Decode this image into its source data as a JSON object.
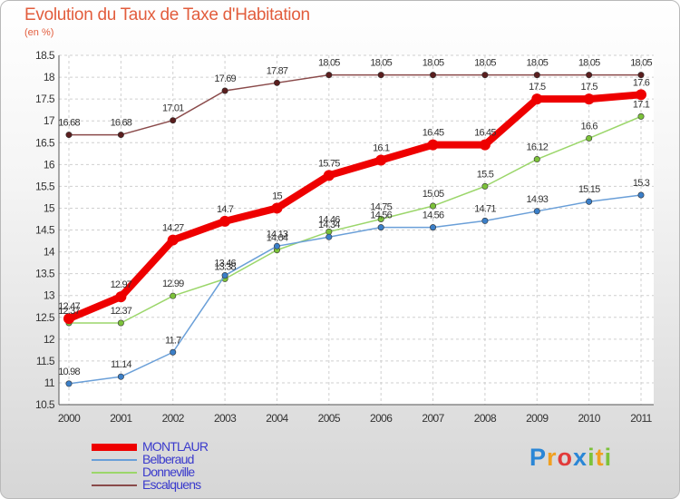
{
  "title": "Evolution du Taux de Taxe d'Habitation",
  "subtitle": "(en %)",
  "logo": {
    "letters": [
      {
        "ch": "P",
        "color": "#2a86d6"
      },
      {
        "ch": "r",
        "color": "#f0a020"
      },
      {
        "ch": "o",
        "color": "#e23b3b"
      },
      {
        "ch": "x",
        "color": "#2a86d6"
      },
      {
        "ch": "i",
        "color": "#7cc23a"
      },
      {
        "ch": "t",
        "color": "#f0a020"
      },
      {
        "ch": "i",
        "color": "#7cc23a"
      }
    ]
  },
  "chart_data": {
    "type": "line",
    "x": [
      "2000",
      "2001",
      "2002",
      "2003",
      "2004",
      "2005",
      "2006",
      "2007",
      "2008",
      "2009",
      "2010",
      "2011"
    ],
    "ylim": [
      10.5,
      18.5
    ],
    "yticks": [
      "10.5",
      "11",
      "11.5",
      "12",
      "12.5",
      "13",
      "13.5",
      "14",
      "14.5",
      "15",
      "15.5",
      "16",
      "16.5",
      "17",
      "17.5",
      "18",
      "18.5"
    ],
    "grid": "dashed",
    "legend_position": "bottom-left",
    "series": [
      {
        "name": "MONTLAUR",
        "color": "#ee0000",
        "marker": "#ee0000",
        "thick": true,
        "values": [
          12.47,
          12.97,
          14.27,
          14.7,
          15.0,
          15.75,
          16.1,
          16.45,
          16.45,
          17.5,
          17.5,
          17.6
        ],
        "labels": [
          "12.47",
          "12.97",
          "14.27",
          "14.7",
          "15",
          "15.75",
          "16.1",
          "16.45",
          "16.45",
          "17.5",
          "17.5",
          "17.6"
        ]
      },
      {
        "name": "Belberaud",
        "color": "#6a9fd8",
        "marker": "#3b7fc8",
        "thick": false,
        "values": [
          10.98,
          11.14,
          11.7,
          13.46,
          14.13,
          14.34,
          14.56,
          14.56,
          14.71,
          14.93,
          15.15,
          15.3
        ],
        "labels": [
          "10.98",
          "11.14",
          "11.7",
          "13.46",
          "14.13",
          "14.34",
          "14.56",
          "14.56",
          "14.71",
          "14.93",
          "15.15",
          "15.3"
        ]
      },
      {
        "name": "Donneville",
        "color": "#9bd66a",
        "marker": "#7cc23a",
        "thick": false,
        "values": [
          12.37,
          12.37,
          12.99,
          13.38,
          14.04,
          14.46,
          14.75,
          15.05,
          15.5,
          16.12,
          16.6,
          17.1
        ],
        "labels": [
          "12.37",
          "12.37",
          "12.99",
          "13.38",
          "14.04",
          "14.46",
          "14.75",
          "15.05",
          "15.5",
          "16.12",
          "16.6",
          "17.1"
        ]
      },
      {
        "name": "Escalquens",
        "color": "#8a4a4a",
        "marker": "#5a1e1e",
        "thick": false,
        "values": [
          16.68,
          16.68,
          17.01,
          17.69,
          17.87,
          18.05,
          18.05,
          18.05,
          18.05,
          18.05,
          18.05,
          18.05
        ],
        "labels": [
          "16.68",
          "16.68",
          "17.01",
          "17.69",
          "17.87",
          "18.05",
          "18.05",
          "18.05",
          "18.05",
          "18.05",
          "18.05",
          "18.05"
        ]
      }
    ]
  }
}
